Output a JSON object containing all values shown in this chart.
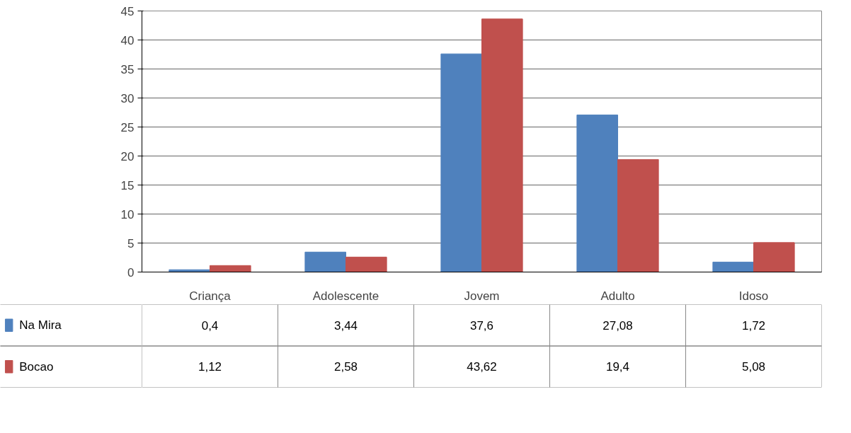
{
  "chart_data": {
    "type": "bar",
    "categories": [
      "Criança",
      "Adolescente",
      "Jovem",
      "Adulto",
      "Idoso"
    ],
    "series": [
      {
        "name": "Na Mira",
        "color": "#4f81bd",
        "values": [
          0.4,
          3.44,
          37.6,
          27.08,
          1.72
        ],
        "value_labels": [
          "0,4",
          "3,44",
          "37,6",
          "27,08",
          "1,72"
        ]
      },
      {
        "name": "Bocao",
        "color": "#c0504d",
        "values": [
          1.12,
          2.58,
          43.62,
          19.4,
          5.08
        ],
        "value_labels": [
          "1,12",
          "2,58",
          "43,62",
          "19,4",
          "5,08"
        ]
      }
    ],
    "ylim": [
      0,
      45
    ],
    "yticks": [
      0,
      5,
      10,
      15,
      20,
      25,
      30,
      35,
      40,
      45
    ],
    "grid": "y",
    "legend": "bottom left"
  }
}
